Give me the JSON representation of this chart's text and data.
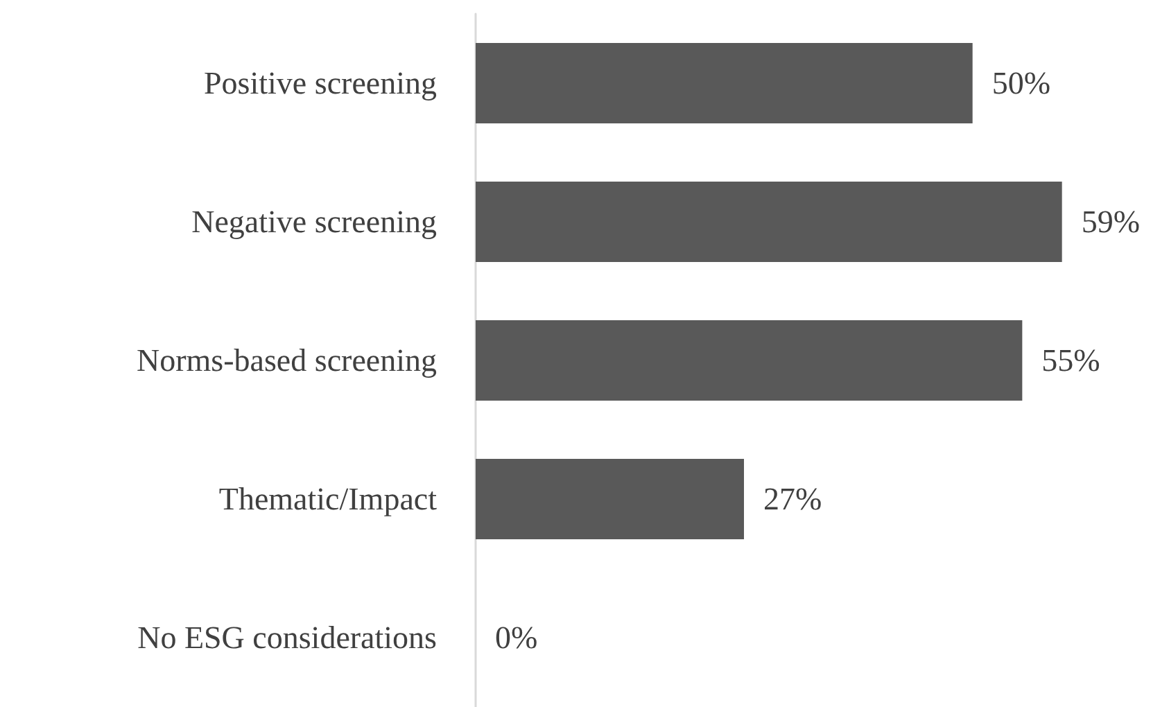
{
  "chart_data": {
    "type": "bar",
    "orientation": "horizontal",
    "categories": [
      "Positive screening",
      "Negative screening",
      "Norms-based screening",
      "Thematic/Impact",
      "No ESG considerations"
    ],
    "values": [
      50,
      59,
      55,
      27,
      0
    ],
    "value_labels": [
      "50%",
      "59%",
      "55%",
      "27%",
      "0%"
    ],
    "color": "#595959"
  }
}
